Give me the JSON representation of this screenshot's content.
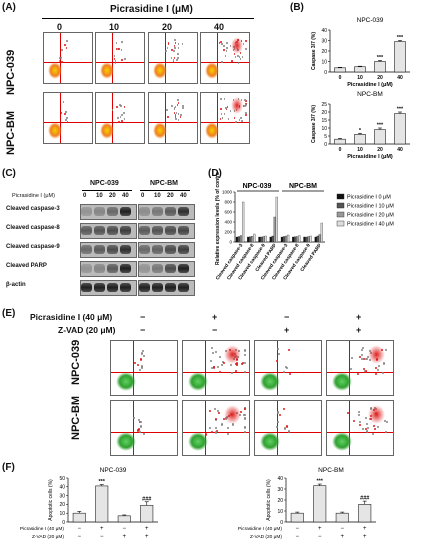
{
  "panelA": {
    "label": "(A)",
    "header": "Picrasidine I (μM)",
    "concentrations": [
      "0",
      "10",
      "20",
      "40"
    ],
    "rows": [
      "NPC-039",
      "NPC-BM"
    ]
  },
  "panelB": {
    "label": "(B)",
    "chart_data": [
      {
        "type": "bar",
        "title": "NPC-039",
        "categories": [
          "0",
          "10",
          "20",
          "40"
        ],
        "values": [
          4,
          5,
          10,
          29
        ],
        "errors": [
          0.5,
          0.5,
          1,
          1
        ],
        "significance": [
          "",
          "",
          "***",
          "***"
        ],
        "xlabel": "Picrasidine I (μM)",
        "ylabel": "Caspase 3/7 (%)",
        "ylim": [
          0,
          40
        ],
        "yticks": [
          "0",
          "10",
          "20",
          "30",
          "40"
        ]
      },
      {
        "type": "bar",
        "title": "NPC-BM",
        "categories": [
          "0",
          "10",
          "20",
          "40"
        ],
        "values": [
          3,
          6,
          9,
          19
        ],
        "errors": [
          0.5,
          0.7,
          1,
          1
        ],
        "significance": [
          "",
          "*",
          "***",
          "***"
        ],
        "xlabel": "Picrasidine I (μM)",
        "ylabel": "Caspase 3/7 (%)",
        "ylim": [
          0,
          25
        ],
        "yticks": [
          "0",
          "5",
          "10",
          "15",
          "20",
          "25"
        ]
      }
    ]
  },
  "panelC": {
    "label": "(C)",
    "cells": [
      "NPC-039",
      "NPC-BM"
    ],
    "treatment": "Picrasidine I (μM)",
    "lanes": [
      "0",
      "10",
      "20",
      "40",
      "0",
      "10",
      "20",
      "40"
    ],
    "proteins": [
      "Cleaved caspase-3",
      "Cleaved caspase-8",
      "Cleaved caspase-9",
      "Cleaved PARP",
      "β-actin"
    ]
  },
  "panelD": {
    "label": "(D)",
    "chart_data": {
      "type": "bar",
      "groups": [
        "NPC-039",
        "NPC-BM"
      ],
      "categories": [
        "Cleaved caspase-3",
        "Cleaved caspase-8",
        "Cleaved caspase-9",
        "Cleaved PARP",
        "Cleaved caspase-3",
        "Cleaved caspase-8",
        "Cleaved caspase-9",
        "Cleaved PARP"
      ],
      "series": [
        {
          "name": "Picrasidine I 0 μM",
          "values": [
            100,
            100,
            100,
            100,
            100,
            100,
            100,
            100
          ]
        },
        {
          "name": "Picrasidine I 10 μM",
          "values": [
            110,
            105,
            100,
            120,
            110,
            105,
            100,
            120
          ]
        },
        {
          "name": "Picrasidine I 20 μM",
          "values": [
            130,
            115,
            110,
            500,
            120,
            110,
            110,
            150
          ]
        },
        {
          "name": "Picrasidine I 40 μM",
          "values": [
            800,
            160,
            120,
            900,
            140,
            130,
            120,
            380
          ]
        }
      ],
      "ylabel": "Relative expression levels (% of control)",
      "ylim": [
        0,
        1000
      ],
      "yticks": [
        "0",
        "200",
        "400",
        "600",
        "800",
        "1000"
      ],
      "colors": [
        "#111111",
        "#555555",
        "#999999",
        "#dddddd"
      ]
    }
  },
  "panelE": {
    "label": "(E)",
    "treatments": [
      {
        "name": "Picrasidine I (40 μM)",
        "signs": [
          "−",
          "+",
          "−",
          "+"
        ]
      },
      {
        "name": "Z-VAD (20 μM)",
        "signs": [
          "−",
          "−",
          "+",
          "+"
        ]
      }
    ],
    "rows": [
      "NPC-039",
      "NPC-BM"
    ]
  },
  "panelF": {
    "label": "(F)",
    "chart_data": [
      {
        "type": "bar",
        "title": "NPC-039",
        "values": [
          10,
          41,
          7,
          19
        ],
        "errors": [
          2,
          1.5,
          1,
          4
        ],
        "significance": [
          "",
          "***",
          "",
          "###"
        ],
        "ylabel": "Apoptotic cells (%)",
        "ylim": [
          0,
          50
        ],
        "yticks": [
          "0",
          "10",
          "20",
          "30",
          "40",
          "50"
        ],
        "rows": [
          {
            "name": "Picrasidine I (40 μM)",
            "signs": [
              "−",
              "+",
              "−",
              "+"
            ]
          },
          {
            "name": "Z-VAD (20 μM)",
            "signs": [
              "−",
              "−",
              "+",
              "+"
            ]
          }
        ]
      },
      {
        "type": "bar",
        "title": "NPC-BM",
        "values": [
          8,
          33,
          8,
          16
        ],
        "errors": [
          1,
          1.5,
          1,
          3
        ],
        "significance": [
          "",
          "***",
          "",
          "###"
        ],
        "ylabel": "Apoptotic cells (%)",
        "ylim": [
          0,
          40
        ],
        "yticks": [
          "0",
          "10",
          "20",
          "30",
          "40"
        ],
        "rows": [
          {
            "name": "Picrasidine I (40 μM)",
            "signs": [
              "−",
              "+",
              "−",
              "+"
            ]
          },
          {
            "name": "Z-VAD (20 μM)",
            "signs": [
              "−",
              "−",
              "+",
              "+"
            ]
          }
        ]
      }
    ]
  }
}
